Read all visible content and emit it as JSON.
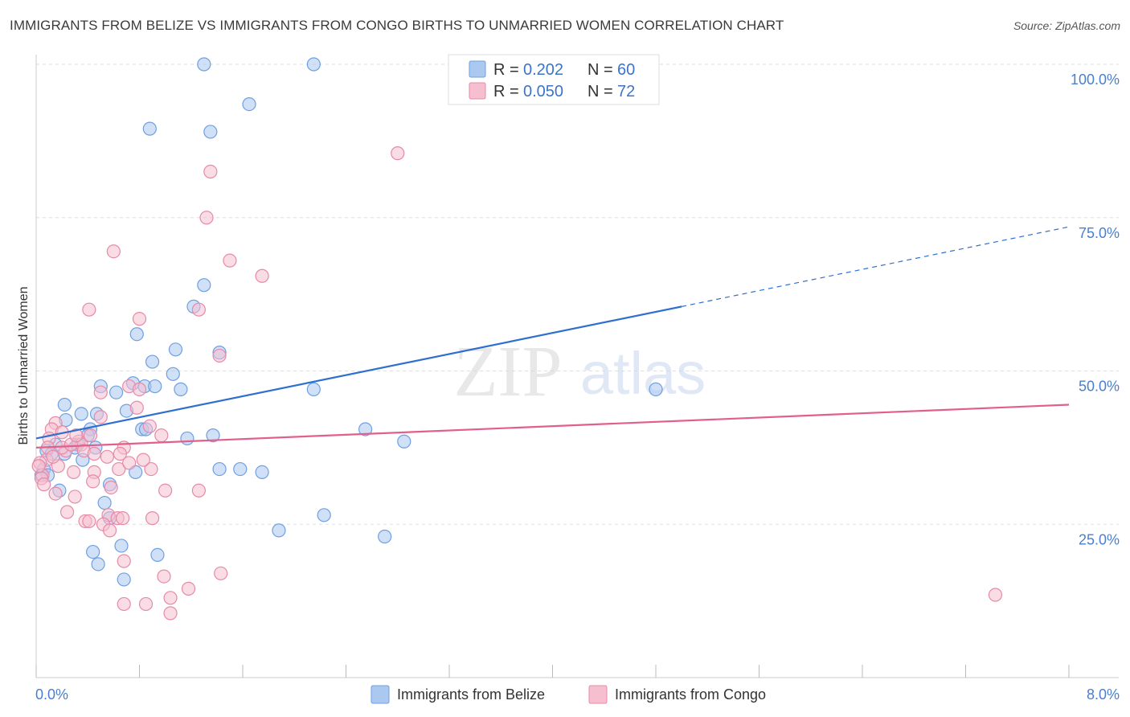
{
  "header": {
    "title": "IMMIGRANTS FROM BELIZE VS IMMIGRANTS FROM CONGO BIRTHS TO UNMARRIED WOMEN CORRELATION CHART",
    "source": "Source: ZipAtlas.com"
  },
  "watermark": {
    "zip": "ZIP",
    "atlas": "atlas"
  },
  "legend": {
    "r_label": "R =",
    "n_label": "N =",
    "series": [
      {
        "r": "0.202",
        "n": "60"
      },
      {
        "r": "0.050",
        "n": "72"
      }
    ]
  },
  "chart_data": {
    "type": "scatter",
    "title": "IMMIGRANTS FROM BELIZE VS IMMIGRANTS FROM CONGO BIRTHS TO UNMARRIED WOMEN CORRELATION CHART",
    "xlabel": "",
    "ylabel": "Births to Unmarried Women",
    "xlim": [
      0,
      8
    ],
    "ylim": [
      0,
      100
    ],
    "x_tick_labels": [
      "0.0%",
      "8.0%"
    ],
    "y_ticks": [
      25,
      50,
      75,
      100
    ],
    "y_tick_labels": [
      "25.0%",
      "50.0%",
      "75.0%",
      "100.0%"
    ],
    "grid": true,
    "series": [
      {
        "name": "Immigrants from Belize",
        "color": "#6f9fe0",
        "fill": "#aac8f0",
        "line_color": "#2f6fcf",
        "trend": {
          "x0": 0.0,
          "y0": 39.0,
          "x1": 5.0,
          "y1": 60.5,
          "dash_to_x": 8.0,
          "dash_to_y": 73.5
        },
        "points": [
          [
            1.3,
            100
          ],
          [
            2.15,
            100
          ],
          [
            1.65,
            93.5
          ],
          [
            0.88,
            89.5
          ],
          [
            1.35,
            89
          ],
          [
            1.3,
            64
          ],
          [
            1.22,
            60.5
          ],
          [
            0.78,
            56
          ],
          [
            1.08,
            53.5
          ],
          [
            1.42,
            53
          ],
          [
            0.9,
            51.5
          ],
          [
            1.06,
            49.5
          ],
          [
            0.5,
            47.5
          ],
          [
            0.75,
            48
          ],
          [
            0.84,
            47.5
          ],
          [
            0.92,
            47.5
          ],
          [
            1.12,
            47
          ],
          [
            0.62,
            46.5
          ],
          [
            2.15,
            47
          ],
          [
            4.8,
            47
          ],
          [
            0.22,
            44.5
          ],
          [
            0.35,
            43
          ],
          [
            0.47,
            43
          ],
          [
            0.7,
            43.5
          ],
          [
            0.23,
            42
          ],
          [
            0.42,
            40.5
          ],
          [
            0.82,
            40.5
          ],
          [
            0.85,
            40.5
          ],
          [
            2.55,
            40.5
          ],
          [
            1.37,
            39.5
          ],
          [
            0.4,
            39.5
          ],
          [
            1.17,
            39
          ],
          [
            2.85,
            38.5
          ],
          [
            0.32,
            38
          ],
          [
            0.46,
            37.5
          ],
          [
            0.08,
            37
          ],
          [
            0.12,
            36.5
          ],
          [
            0.22,
            36.5
          ],
          [
            0.36,
            35.5
          ],
          [
            0.06,
            34
          ],
          [
            0.77,
            33.5
          ],
          [
            1.42,
            34
          ],
          [
            1.58,
            34
          ],
          [
            1.75,
            33.5
          ],
          [
            0.04,
            33
          ],
          [
            0.18,
            30.5
          ],
          [
            0.57,
            31.5
          ],
          [
            0.53,
            28.5
          ],
          [
            2.23,
            26.5
          ],
          [
            0.57,
            26
          ],
          [
            1.88,
            24
          ],
          [
            2.7,
            23
          ],
          [
            0.66,
            21.5
          ],
          [
            0.44,
            20.5
          ],
          [
            0.94,
            20
          ],
          [
            0.48,
            18.5
          ],
          [
            0.68,
            16
          ],
          [
            0.09,
            33
          ],
          [
            0.3,
            37.5
          ],
          [
            0.15,
            38
          ]
        ]
      },
      {
        "name": "Immigrants from Congo",
        "color": "#e68aa8",
        "fill": "#f6bfd0",
        "line_color": "#e0608a",
        "trend": {
          "x0": 0.0,
          "y0": 37.5,
          "x1": 8.0,
          "y1": 44.5
        },
        "points": [
          [
            2.8,
            85.5
          ],
          [
            1.35,
            82.5
          ],
          [
            1.32,
            75
          ],
          [
            0.6,
            69.5
          ],
          [
            1.5,
            68
          ],
          [
            1.75,
            65.5
          ],
          [
            0.41,
            60
          ],
          [
            1.26,
            60
          ],
          [
            0.8,
            58.5
          ],
          [
            1.42,
            52.5
          ],
          [
            0.72,
            47.5
          ],
          [
            0.8,
            47
          ],
          [
            0.5,
            46.5
          ],
          [
            0.78,
            44
          ],
          [
            0.15,
            41.5
          ],
          [
            0.5,
            42.5
          ],
          [
            0.88,
            41
          ],
          [
            0.12,
            40.5
          ],
          [
            0.2,
            40
          ],
          [
            0.42,
            39.5
          ],
          [
            0.97,
            39.5
          ],
          [
            0.1,
            39
          ],
          [
            0.33,
            38.5
          ],
          [
            0.35,
            38
          ],
          [
            0.68,
            37.5
          ],
          [
            0.23,
            37
          ],
          [
            0.37,
            37
          ],
          [
            0.45,
            36.5
          ],
          [
            0.08,
            35.5
          ],
          [
            0.03,
            35
          ],
          [
            0.17,
            34.5
          ],
          [
            0.64,
            34
          ],
          [
            0.89,
            34
          ],
          [
            0.29,
            33.5
          ],
          [
            0.45,
            33.5
          ],
          [
            0.05,
            33
          ],
          [
            0.04,
            32.5
          ],
          [
            0.44,
            32
          ],
          [
            0.58,
            31
          ],
          [
            1.0,
            30.5
          ],
          [
            1.26,
            30.5
          ],
          [
            0.15,
            30
          ],
          [
            0.3,
            29.5
          ],
          [
            0.24,
            27
          ],
          [
            0.56,
            26.5
          ],
          [
            0.63,
            26
          ],
          [
            0.67,
            26
          ],
          [
            0.9,
            26
          ],
          [
            0.38,
            25.5
          ],
          [
            0.41,
            25.5
          ],
          [
            0.52,
            25
          ],
          [
            0.57,
            24
          ],
          [
            0.68,
            19
          ],
          [
            0.99,
            16.5
          ],
          [
            1.18,
            14.5
          ],
          [
            1.43,
            17
          ],
          [
            1.04,
            13
          ],
          [
            0.68,
            12
          ],
          [
            0.85,
            12
          ],
          [
            1.04,
            10.5
          ],
          [
            7.43,
            13.5
          ],
          [
            0.09,
            37.5
          ],
          [
            0.13,
            36
          ],
          [
            0.2,
            37.5
          ],
          [
            0.27,
            38
          ],
          [
            0.31,
            39.5
          ],
          [
            0.55,
            36
          ],
          [
            0.65,
            36.5
          ],
          [
            0.72,
            35
          ],
          [
            0.83,
            35.5
          ],
          [
            0.06,
            31.5
          ],
          [
            0.02,
            34.5
          ]
        ]
      }
    ]
  },
  "bottom_legend": [
    {
      "label": "Immigrants from Belize"
    },
    {
      "label": "Immigrants from Congo"
    }
  ]
}
